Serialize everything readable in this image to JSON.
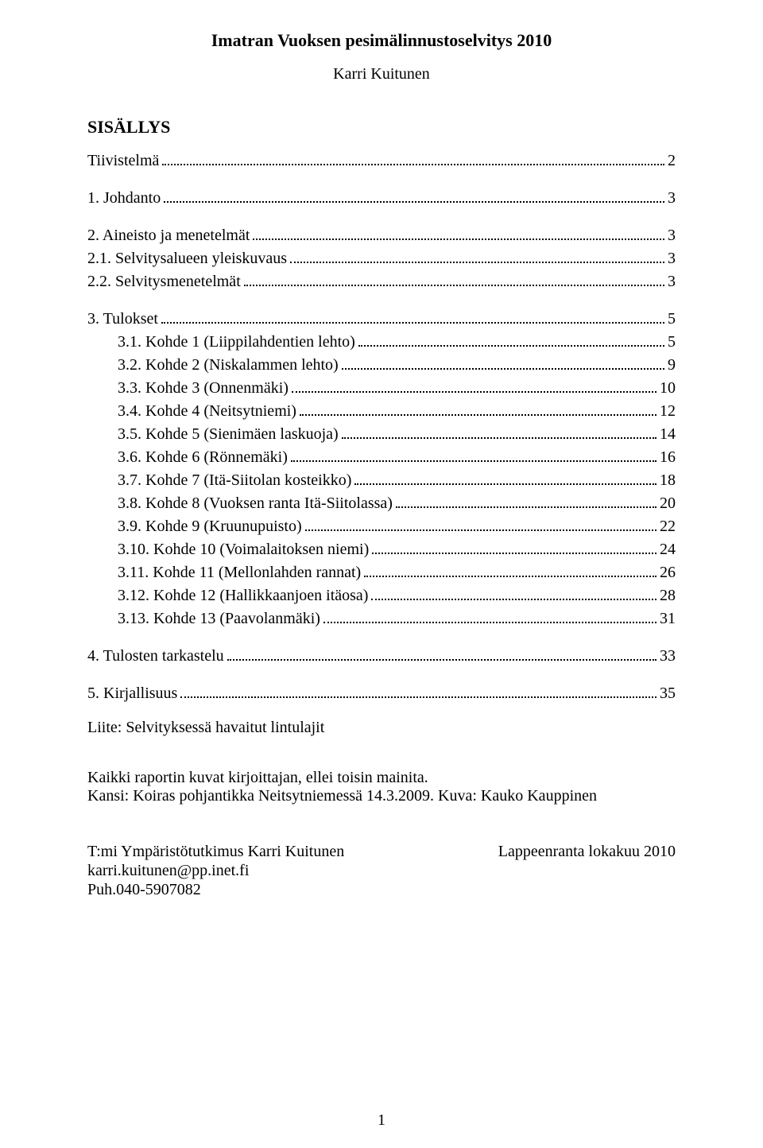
{
  "title": "Imatran Vuoksen pesimälinnustoselvitys 2010",
  "author": "Karri Kuitunen",
  "toc_heading": "SISÄLLYS",
  "toc": [
    {
      "label": "Tiivistelmä",
      "page": "2",
      "indent": 0,
      "gap_after": true
    },
    {
      "label": "1. Johdanto",
      "page": "3",
      "indent": 0,
      "gap_after": true
    },
    {
      "label": "2. Aineisto ja menetelmät",
      "page": "3",
      "indent": 0
    },
    {
      "label": "2.1. Selvitysalueen yleiskuvaus",
      "page": "3",
      "indent": 0
    },
    {
      "label": "2.2. Selvitysmenetelmät",
      "page": "3",
      "indent": 0,
      "gap_after": true
    },
    {
      "label": "3. Tulokset",
      "page": "5",
      "indent": 0
    },
    {
      "label": "3.1. Kohde 1 (Liippilahdentien lehto)",
      "page": "5",
      "indent": 1
    },
    {
      "label": "3.2. Kohde 2 (Niskalammen lehto)",
      "page": "9",
      "indent": 1
    },
    {
      "label": "3.3. Kohde 3 (Onnenmäki)",
      "page": "10",
      "indent": 1
    },
    {
      "label": "3.4. Kohde 4 (Neitsytniemi)",
      "page": "12",
      "indent": 1
    },
    {
      "label": "3.5. Kohde 5 (Sienimäen laskuoja)",
      "page": "14",
      "indent": 1
    },
    {
      "label": "3.6. Kohde 6 (Rönnemäki)",
      "page": "16",
      "indent": 1
    },
    {
      "label": "3.7. Kohde 7 (Itä-Siitolan kosteikko)",
      "page": "18",
      "indent": 1
    },
    {
      "label": "3.8. Kohde 8 (Vuoksen ranta Itä-Siitolassa)",
      "page": "20",
      "indent": 1
    },
    {
      "label": "3.9. Kohde 9 (Kruunupuisto)",
      "page": "22",
      "indent": 1
    },
    {
      "label": "3.10. Kohde 10 (Voimalaitoksen niemi)",
      "page": "24",
      "indent": 1
    },
    {
      "label": "3.11. Kohde 11 (Mellonlahden rannat)",
      "page": "26",
      "indent": 1
    },
    {
      "label": "3.12. Kohde 12 (Hallikkaanjoen itäosa)",
      "page": "28",
      "indent": 1
    },
    {
      "label": "3.13. Kohde 13 (Paavolanmäki)",
      "page": "31",
      "indent": 1,
      "gap_after": true
    },
    {
      "label": "4. Tulosten tarkastelu",
      "page": "33",
      "indent": 0,
      "gap_after": true
    },
    {
      "label": "5. Kirjallisuus",
      "page": "35",
      "indent": 0
    }
  ],
  "appendix": "Liite: Selvityksessä havaitut lintulajit",
  "notes_line1": "Kaikki raportin kuvat kirjoittajan, ellei toisin mainita.",
  "notes_line2": "Kansi: Koiras pohjantikka Neitsytniemessä 14.3.2009. Kuva: Kauko Kauppinen",
  "footer": {
    "company": "T:mi Ympäristötutkimus Karri Kuitunen",
    "email": "karri.kuitunen@pp.inet.fi",
    "phone": "Puh.040-5907082",
    "location_date": "Lappeenranta lokakuu 2010"
  },
  "page_number": "1"
}
